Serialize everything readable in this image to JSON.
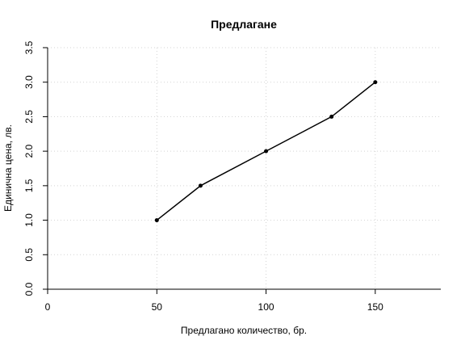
{
  "chart_data": {
    "type": "line",
    "title": "Предлагане",
    "xlabel": "Предлагано количество, бр.",
    "ylabel": "Единична цена, лв.",
    "xlim": [
      0,
      180
    ],
    "ylim": [
      0,
      3.5
    ],
    "xticks": [
      0,
      50,
      100,
      150
    ],
    "xtick_labels": [
      "0",
      "50",
      "100",
      "150"
    ],
    "yticks": [
      0,
      0.5,
      1,
      1.5,
      2,
      2.5,
      3,
      3.5
    ],
    "ytick_labels": [
      "0.0",
      "0.5",
      "1.0",
      "1.5",
      "2.0",
      "2.5",
      "3.0",
      "3.5"
    ],
    "grid": true,
    "series": [
      {
        "x": [
          50,
          70,
          100,
          130,
          150
        ],
        "y": [
          1.0,
          1.5,
          2.0,
          2.5,
          3.0
        ]
      }
    ]
  },
  "colors": {
    "line": "#000000",
    "grid": "#d3d3d3"
  }
}
